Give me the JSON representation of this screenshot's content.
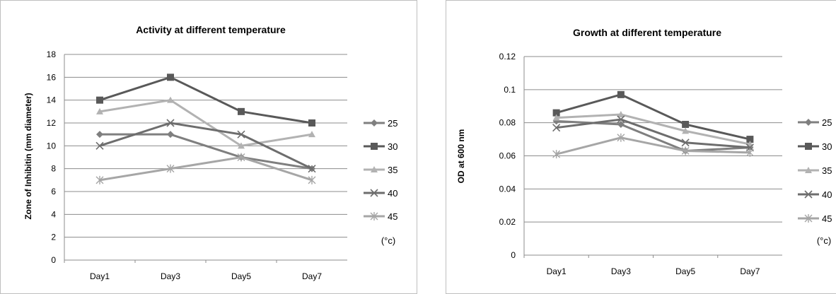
{
  "chart_data": [
    {
      "type": "line",
      "title": "Activity at different temperature",
      "xlabel": "",
      "ylabel": "Zone of Inhibitin (mm diameter)",
      "categories": [
        "Day1",
        "Day3",
        "Day5",
        "Day7"
      ],
      "ylim": [
        0,
        18
      ],
      "yticks": [
        "0",
        "2",
        "4",
        "6",
        "8",
        "10",
        "12",
        "14",
        "16",
        "18"
      ],
      "grid": true,
      "legend_position": "right",
      "legend_unit": "(°c)",
      "series": [
        {
          "name": "25",
          "values": [
            11,
            11,
            9,
            8
          ],
          "color": "#7f7f7f",
          "marker": "diamond"
        },
        {
          "name": "30",
          "values": [
            14,
            16,
            13,
            12
          ],
          "color": "#595959",
          "marker": "square"
        },
        {
          "name": "35",
          "values": [
            13,
            14,
            10,
            11
          ],
          "color": "#b2b2b2",
          "marker": "triangle"
        },
        {
          "name": "40",
          "values": [
            10,
            12,
            11,
            8
          ],
          "color": "#6d6d6d",
          "marker": "x"
        },
        {
          "name": "45",
          "values": [
            7,
            8,
            9,
            7
          ],
          "color": "#a6a6a6",
          "marker": "star"
        }
      ]
    },
    {
      "type": "line",
      "title": "Growth at different temperature",
      "xlabel": "",
      "ylabel": "OD at 600 nm",
      "categories": [
        "Day1",
        "Day3",
        "Day5",
        "Day7"
      ],
      "ylim": [
        0,
        0.12
      ],
      "yticks": [
        "0",
        "0.02",
        "0.04",
        "0.06",
        "0.08",
        "0.1",
        "0.12"
      ],
      "grid": true,
      "legend_position": "right",
      "legend_unit": "(°c)",
      "series": [
        {
          "name": "25",
          "values": [
            0.081,
            0.079,
            0.063,
            0.065
          ],
          "color": "#7f7f7f",
          "marker": "diamond"
        },
        {
          "name": "30",
          "values": [
            0.086,
            0.097,
            0.079,
            0.07
          ],
          "color": "#595959",
          "marker": "square"
        },
        {
          "name": "35",
          "values": [
            0.083,
            0.085,
            0.075,
            0.067
          ],
          "color": "#b2b2b2",
          "marker": "triangle"
        },
        {
          "name": "40",
          "values": [
            0.077,
            0.082,
            0.068,
            0.065
          ],
          "color": "#6d6d6d",
          "marker": "x"
        },
        {
          "name": "45",
          "values": [
            0.061,
            0.071,
            0.063,
            0.062
          ],
          "color": "#a6a6a6",
          "marker": "star"
        }
      ]
    }
  ]
}
